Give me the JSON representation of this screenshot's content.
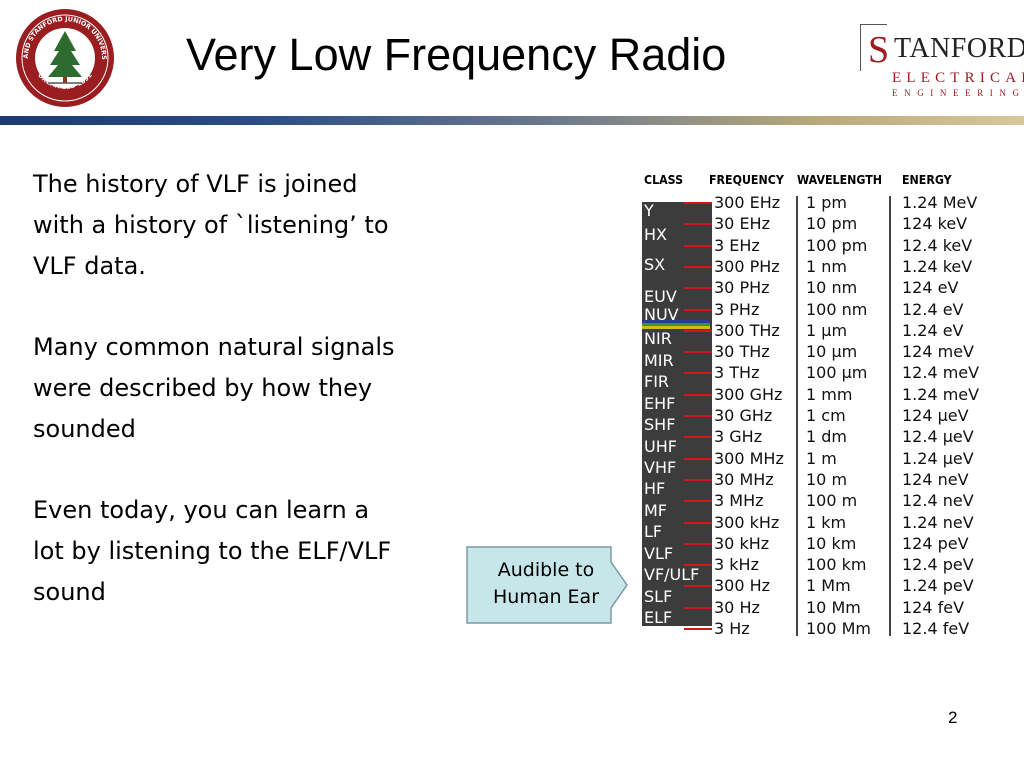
{
  "slide": {
    "title": "Very Low Frequency Radio",
    "page_number": "2"
  },
  "seal": {
    "text_top": "LELAND STANFORD JUNIOR UNIVERSITY",
    "text_bottom": "ORGANIZED 1891"
  },
  "logo": {
    "initial": "S",
    "line1": "TANFORD",
    "line2": "ELECTRICAL",
    "line3": "ENGINEERING"
  },
  "body": {
    "paragraphs": [
      "The history of VLF is joined with a history of `listening’ to VLF data.",
      "Many common natural signals were described by how they sounded",
      "Even today, you can learn a lot by listening to the ELF/VLF sound"
    ]
  },
  "callout": {
    "text": "Audible to Human Ear"
  },
  "spectrum": {
    "headers": {
      "class": "CLASS",
      "frequency": "FREQUENCY",
      "wavelength": "WAVELENGTH",
      "energy": "ENERGY"
    },
    "classes": [
      "Y",
      "HX",
      "SX",
      "EUV",
      "NUV",
      "NIR",
      "MIR",
      "FIR",
      "EHF",
      "SHF",
      "UHF",
      "VHF",
      "HF",
      "MF",
      "LF",
      "VLF",
      "VF/ULF",
      "SLF",
      "ELF"
    ],
    "rows": [
      {
        "frequency": "300 EHz",
        "wavelength": "1 pm",
        "energy": "1.24 MeV"
      },
      {
        "frequency": "30 EHz",
        "wavelength": "10 pm",
        "energy": "124 keV"
      },
      {
        "frequency": "3 EHz",
        "wavelength": "100 pm",
        "energy": "12.4 keV"
      },
      {
        "frequency": "300 PHz",
        "wavelength": "1 nm",
        "energy": "1.24 keV"
      },
      {
        "frequency": "30 PHz",
        "wavelength": "10 nm",
        "energy": "124 eV"
      },
      {
        "frequency": "3 PHz",
        "wavelength": "100 nm",
        "energy": "12.4 eV"
      },
      {
        "frequency": "300 THz",
        "wavelength": "1 μm",
        "energy": "1.24 eV"
      },
      {
        "frequency": "30 THz",
        "wavelength": "10 μm",
        "energy": "124 meV"
      },
      {
        "frequency": "3 THz",
        "wavelength": "100 μm",
        "energy": "12.4 meV"
      },
      {
        "frequency": "300 GHz",
        "wavelength": "1 mm",
        "energy": "1.24 meV"
      },
      {
        "frequency": "30 GHz",
        "wavelength": "1 cm",
        "energy": "124 μeV"
      },
      {
        "frequency": "3 GHz",
        "wavelength": "1 dm",
        "energy": "12.4 μeV"
      },
      {
        "frequency": "300 MHz",
        "wavelength": "1 m",
        "energy": "1.24 μeV"
      },
      {
        "frequency": "30 MHz",
        "wavelength": "10 m",
        "energy": "124 neV"
      },
      {
        "frequency": "3 MHz",
        "wavelength": "100 m",
        "energy": "12.4 neV"
      },
      {
        "frequency": "300 kHz",
        "wavelength": "1 km",
        "energy": "1.24 neV"
      },
      {
        "frequency": "30 kHz",
        "wavelength": "10 km",
        "energy": "124 peV"
      },
      {
        "frequency": "3 kHz",
        "wavelength": "100 km",
        "energy": "12.4 peV"
      },
      {
        "frequency": "300 Hz",
        "wavelength": "1 Mm",
        "energy": "1.24 peV"
      },
      {
        "frequency": "30 Hz",
        "wavelength": "10 Mm",
        "energy": "124 feV"
      },
      {
        "frequency": "3 Hz",
        "wavelength": "100 Mm",
        "energy": "12.4 feV"
      }
    ]
  }
}
